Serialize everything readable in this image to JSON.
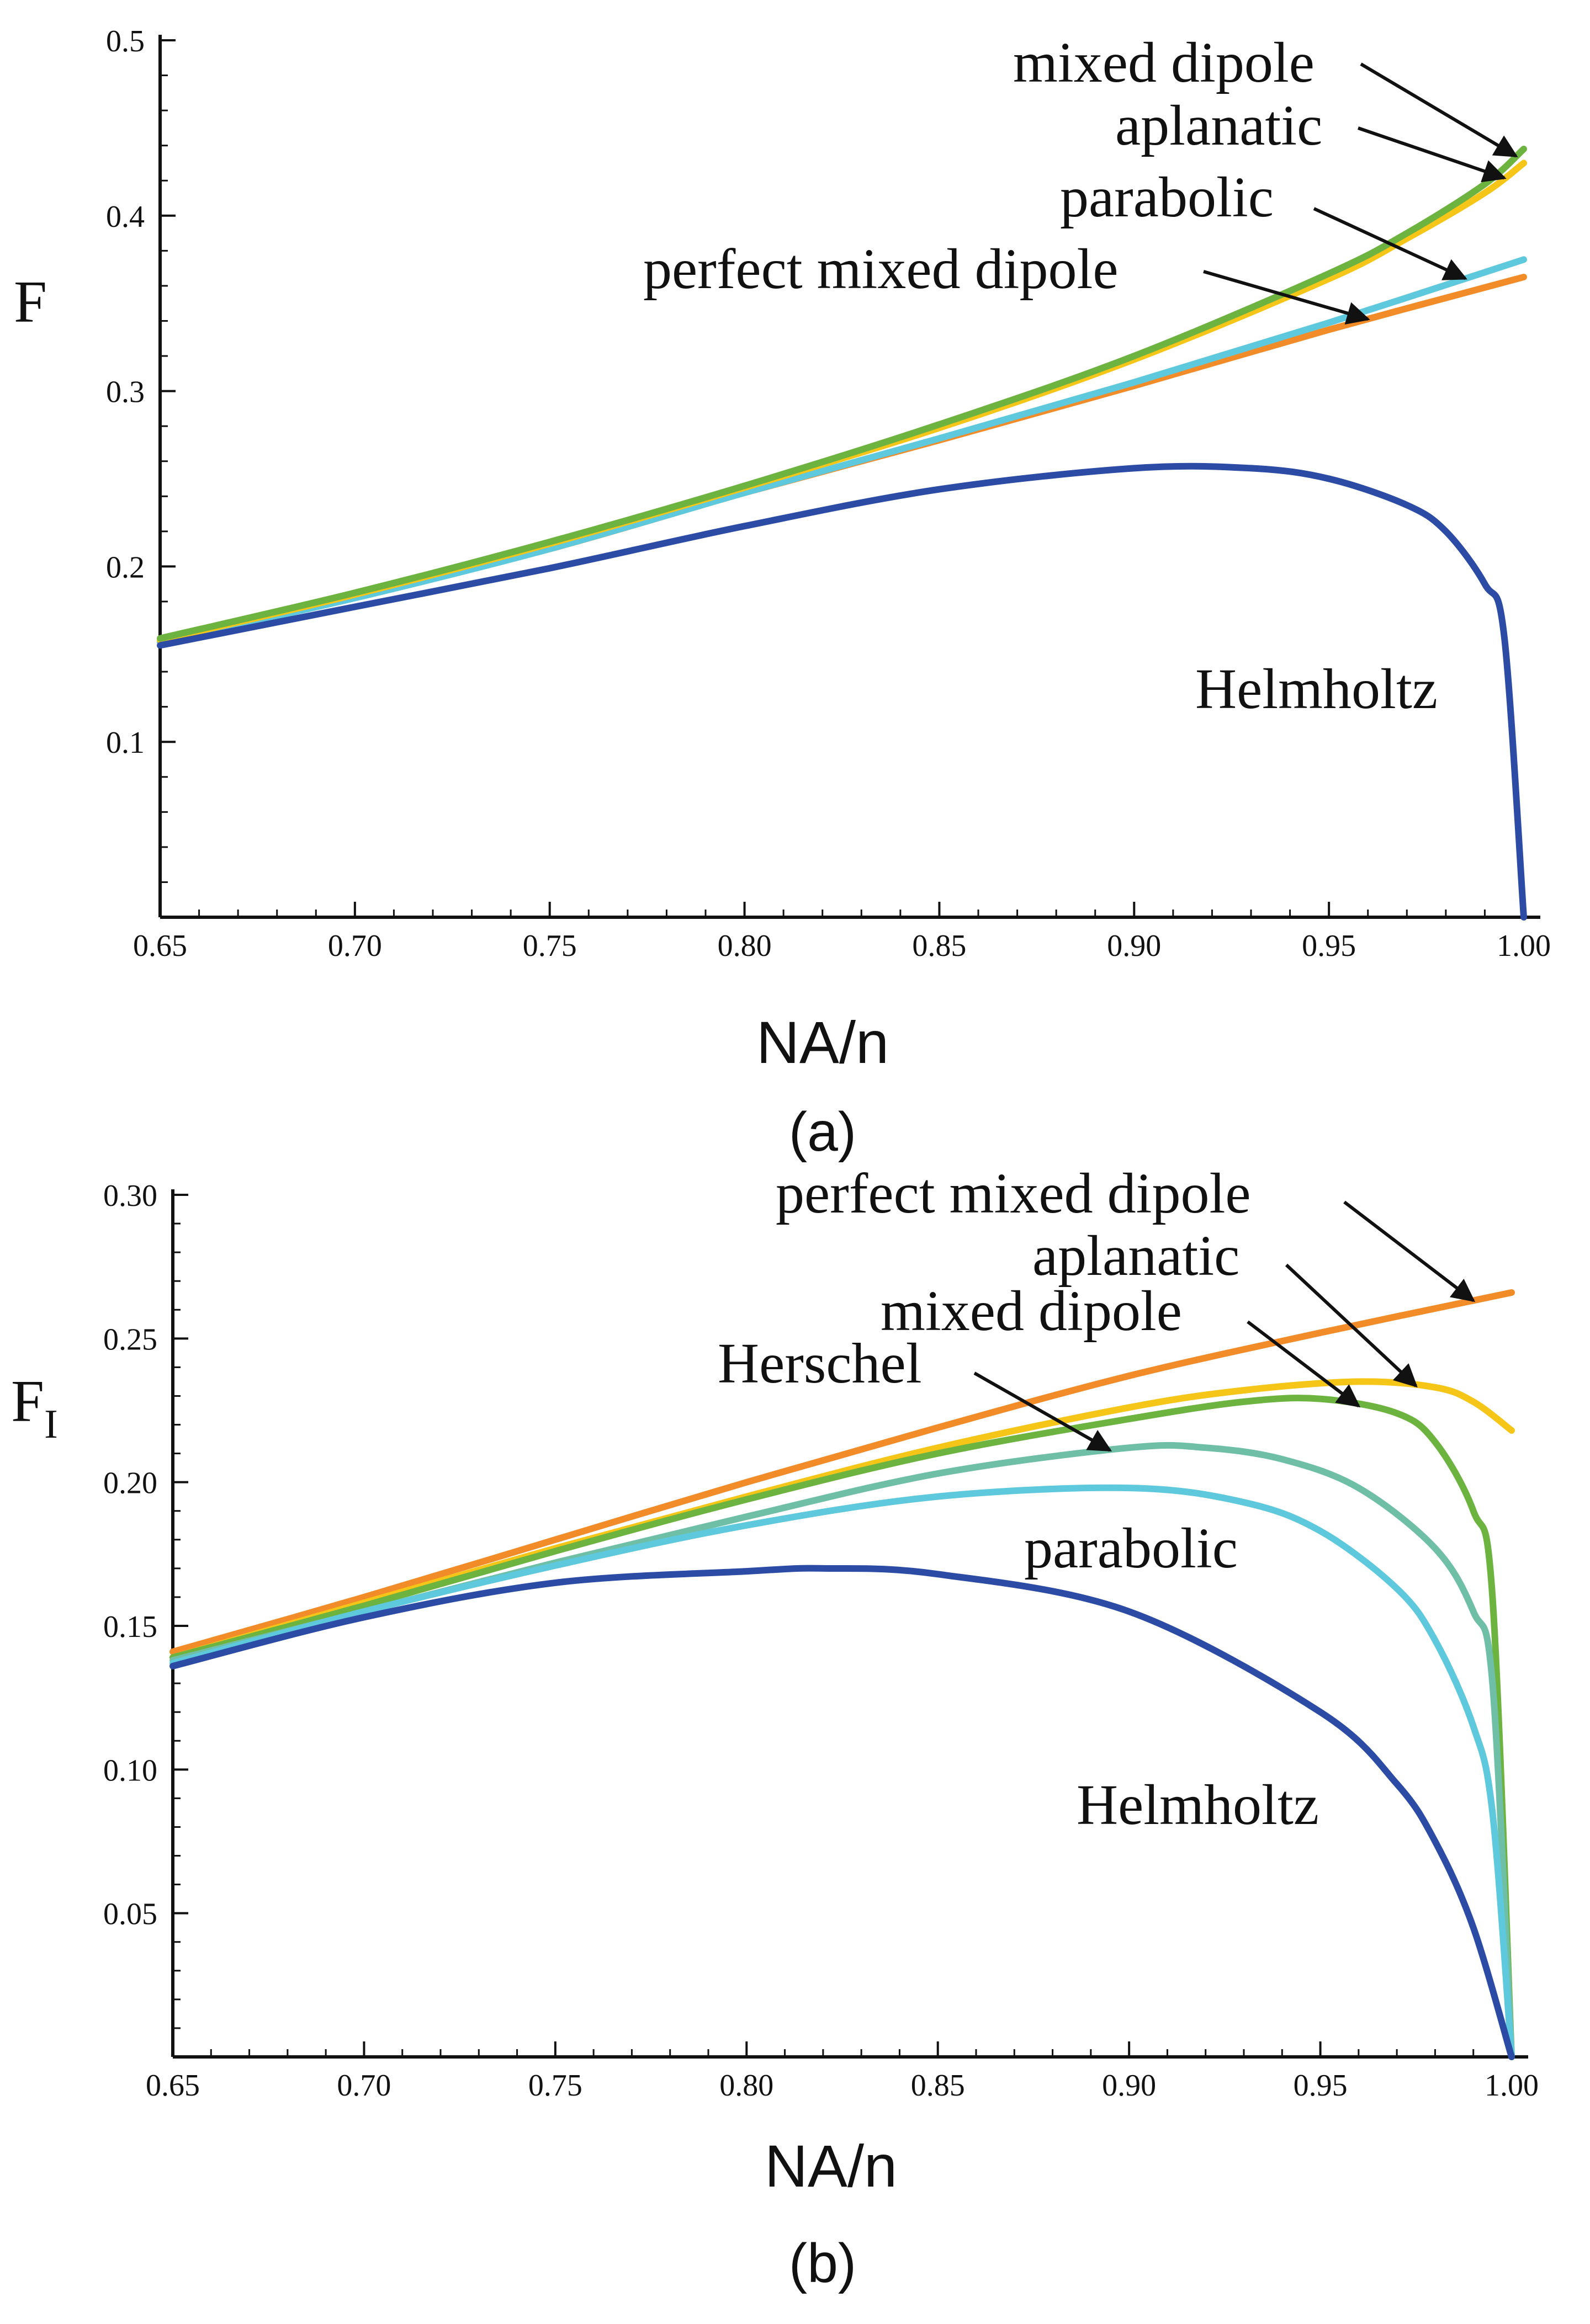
{
  "chart_data": [
    {
      "type": "line",
      "panel": "(a)",
      "xlabel": "NA/n",
      "ylabel": "F",
      "xlim": [
        0.65,
        1.0
      ],
      "ylim": [
        0.0,
        0.5
      ],
      "xticks": [
        0.65,
        0.7,
        0.75,
        0.8,
        0.85,
        0.9,
        0.95,
        1.0
      ],
      "xtick_labels": [
        "0.65",
        "0.70",
        "0.75",
        "0.80",
        "0.85",
        "0.90",
        "0.95",
        "1.00"
      ],
      "yticks": [
        0.1,
        0.2,
        0.3,
        0.4,
        0.5
      ],
      "ytick_labels": [
        "0.1",
        "0.2",
        "0.3",
        "0.4",
        "0.5"
      ],
      "series": [
        {
          "name": "perfect mixed dipole",
          "color": "#F28C28",
          "x": [
            0.65,
            0.7,
            0.75,
            0.8,
            0.85,
            0.9,
            0.95,
            1.0
          ],
          "y": [
            0.157,
            0.183,
            0.21,
            0.242,
            0.272,
            0.303,
            0.335,
            0.365
          ]
        },
        {
          "name": "parabolic",
          "color": "#5EC8DC",
          "x": [
            0.65,
            0.7,
            0.75,
            0.8,
            0.85,
            0.9,
            0.95,
            1.0
          ],
          "y": [
            0.157,
            0.182,
            0.21,
            0.242,
            0.273,
            0.305,
            0.339,
            0.375
          ]
        },
        {
          "name": "aplanatic",
          "color": "#F5C518",
          "x": [
            0.65,
            0.7,
            0.75,
            0.8,
            0.85,
            0.9,
            0.95,
            0.97,
            0.99,
            1.0
          ],
          "y": [
            0.158,
            0.184,
            0.213,
            0.245,
            0.279,
            0.318,
            0.364,
            0.387,
            0.413,
            0.43
          ]
        },
        {
          "name": "mixed dipole",
          "color": "#6DB33F",
          "x": [
            0.65,
            0.7,
            0.75,
            0.8,
            0.85,
            0.9,
            0.95,
            0.97,
            0.99,
            1.0
          ],
          "y": [
            0.159,
            0.185,
            0.214,
            0.246,
            0.281,
            0.32,
            0.367,
            0.39,
            0.418,
            0.438
          ]
        },
        {
          "name": "Helmholtz",
          "color": "#2B4BA5",
          "x": [
            0.65,
            0.7,
            0.75,
            0.8,
            0.85,
            0.9,
            0.93,
            0.95,
            0.97,
            0.98,
            0.99,
            0.995,
            1.0
          ],
          "y": [
            0.155,
            0.177,
            0.199,
            0.223,
            0.244,
            0.256,
            0.256,
            0.25,
            0.235,
            0.22,
            0.19,
            0.16,
            0.0
          ]
        }
      ],
      "annotations": [
        {
          "text": "mixed dipole",
          "target_series": "mixed dipole",
          "target_x": 0.998,
          "arrow": true
        },
        {
          "text": "aplanatic",
          "target_series": "aplanatic",
          "target_x": 0.995,
          "arrow": true
        },
        {
          "text": "parabolic",
          "target_series": "parabolic",
          "target_x": 0.985,
          "arrow": true
        },
        {
          "text": "perfect mixed dipole",
          "target_series": "perfect mixed dipole",
          "target_x": 0.96,
          "arrow": true
        },
        {
          "text": "Helmholtz",
          "arrow": false
        }
      ]
    },
    {
      "type": "line",
      "panel": "(b)",
      "xlabel": "NA/n",
      "ylabel": "F",
      "ylabel_subscript": "I",
      "xlim": [
        0.65,
        1.0
      ],
      "ylim": [
        0.0,
        0.3
      ],
      "xticks": [
        0.65,
        0.7,
        0.75,
        0.8,
        0.85,
        0.9,
        0.95,
        1.0
      ],
      "xtick_labels": [
        "0.65",
        "0.70",
        "0.75",
        "0.80",
        "0.85",
        "0.90",
        "0.95",
        "1.00"
      ],
      "yticks": [
        0.05,
        0.1,
        0.15,
        0.2,
        0.25,
        0.3
      ],
      "ytick_labels": [
        "0.05",
        "0.10",
        "0.15",
        "0.20",
        "0.25",
        "0.30"
      ],
      "series": [
        {
          "name": "perfect mixed dipole",
          "color": "#F28C28",
          "x": [
            0.65,
            0.7,
            0.75,
            0.8,
            0.85,
            0.9,
            0.95,
            1.0
          ],
          "y": [
            0.141,
            0.16,
            0.18,
            0.2,
            0.219,
            0.237,
            0.252,
            0.266
          ]
        },
        {
          "name": "aplanatic",
          "color": "#F5C518",
          "x": [
            0.65,
            0.7,
            0.75,
            0.8,
            0.85,
            0.9,
            0.93,
            0.96,
            0.98,
            0.99,
            1.0
          ],
          "y": [
            0.139,
            0.158,
            0.177,
            0.195,
            0.212,
            0.226,
            0.232,
            0.235,
            0.233,
            0.228,
            0.218
          ]
        },
        {
          "name": "mixed dipole",
          "color": "#6DB33F",
          "x": [
            0.65,
            0.7,
            0.75,
            0.8,
            0.85,
            0.9,
            0.93,
            0.95,
            0.97,
            0.98,
            0.99,
            0.995,
            1.0
          ],
          "y": [
            0.139,
            0.157,
            0.176,
            0.194,
            0.21,
            0.222,
            0.228,
            0.229,
            0.224,
            0.214,
            0.19,
            0.16,
            0.0
          ]
        },
        {
          "name": "Herschel",
          "color": "#6FBFA7",
          "x": [
            0.65,
            0.7,
            0.75,
            0.8,
            0.85,
            0.9,
            0.92,
            0.94,
            0.96,
            0.98,
            0.99,
            0.995,
            1.0
          ],
          "y": [
            0.138,
            0.155,
            0.172,
            0.188,
            0.203,
            0.212,
            0.212,
            0.208,
            0.198,
            0.177,
            0.155,
            0.13,
            0.0
          ]
        },
        {
          "name": "parabolic",
          "color": "#5EC8DC",
          "x": [
            0.65,
            0.7,
            0.75,
            0.8,
            0.85,
            0.9,
            0.93,
            0.95,
            0.97,
            0.98,
            0.99,
            0.995,
            1.0
          ],
          "y": [
            0.137,
            0.155,
            0.171,
            0.185,
            0.195,
            0.198,
            0.193,
            0.183,
            0.163,
            0.145,
            0.115,
            0.085,
            0.0
          ]
        },
        {
          "name": "Helmholtz",
          "color": "#2B4BA5",
          "x": [
            0.65,
            0.7,
            0.75,
            0.8,
            0.82,
            0.85,
            0.9,
            0.95,
            0.97,
            0.98,
            0.99,
            1.0
          ],
          "y": [
            0.136,
            0.153,
            0.165,
            0.169,
            0.17,
            0.168,
            0.155,
            0.12,
            0.095,
            0.075,
            0.045,
            0.0
          ]
        }
      ],
      "annotations": [
        {
          "text": "perfect mixed dipole",
          "target_series": "perfect mixed dipole",
          "target_x": 0.99,
          "arrow": true
        },
        {
          "text": "aplanatic",
          "target_series": "aplanatic",
          "target_x": 0.975,
          "arrow": true
        },
        {
          "text": "mixed dipole",
          "target_series": "mixed dipole",
          "target_x": 0.96,
          "arrow": true
        },
        {
          "text": "Herschel",
          "target_series": "Herschel",
          "target_x": 0.895,
          "arrow": true
        },
        {
          "text": "parabolic",
          "arrow": false
        },
        {
          "text": "Helmholtz",
          "arrow": false
        }
      ]
    }
  ]
}
